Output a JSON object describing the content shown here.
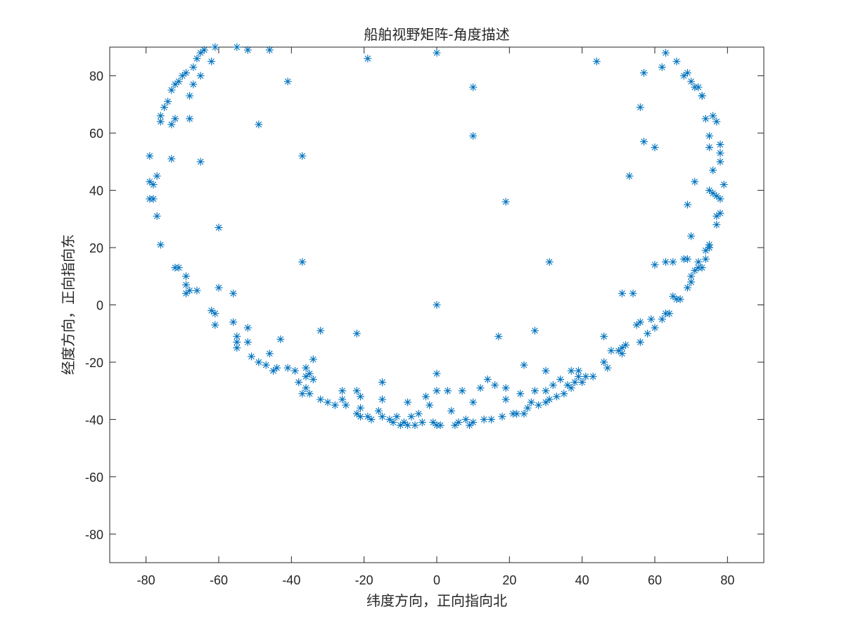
{
  "chart_data": {
    "type": "scatter",
    "title": "船舶视野矩阵-角度描述",
    "xlabel": "纬度方向，正向指向北",
    "ylabel": "经度方向，正向指向东",
    "xlim": [
      -90,
      90
    ],
    "ylim": [
      -90,
      90
    ],
    "xticks": [
      -80,
      -60,
      -40,
      -20,
      0,
      20,
      40,
      60,
      80
    ],
    "yticks": [
      -80,
      -60,
      -40,
      -20,
      0,
      20,
      40,
      60,
      80
    ],
    "grid": false,
    "marker": "asterisk",
    "color": "#0072bd",
    "points": [
      [
        -64,
        89
      ],
      [
        -61,
        90
      ],
      [
        -55,
        90
      ],
      [
        -52,
        89
      ],
      [
        -46,
        89
      ],
      [
        -19,
        86
      ],
      [
        0,
        88
      ],
      [
        44,
        85
      ],
      [
        63,
        88
      ],
      [
        62,
        83
      ],
      [
        66,
        85
      ],
      [
        10,
        76
      ],
      [
        -41,
        78
      ],
      [
        57,
        81
      ],
      [
        -65,
        88
      ],
      [
        -66,
        86
      ],
      [
        -62,
        85
      ],
      [
        -67,
        83
      ],
      [
        -69,
        81
      ],
      [
        -70,
        80
      ],
      [
        -71,
        78
      ],
      [
        -72,
        77
      ],
      [
        -73,
        75
      ],
      [
        -67,
        77
      ],
      [
        -65,
        80
      ],
      [
        -68,
        73
      ],
      [
        -74,
        71
      ],
      [
        -75,
        69
      ],
      [
        -76,
        66
      ],
      [
        -76,
        64
      ],
      [
        -73,
        63
      ],
      [
        -72,
        65
      ],
      [
        -68,
        65
      ],
      [
        -49,
        63
      ],
      [
        -79,
        52
      ],
      [
        -73,
        51
      ],
      [
        -37,
        52
      ],
      [
        -65,
        50
      ],
      [
        -77,
        45
      ],
      [
        -79,
        43
      ],
      [
        -78,
        42
      ],
      [
        -78,
        37
      ],
      [
        -79,
        37
      ],
      [
        -77,
        31
      ],
      [
        -60,
        27
      ],
      [
        -76,
        21
      ],
      [
        -37,
        15
      ],
      [
        -72,
        13
      ],
      [
        -71,
        13
      ],
      [
        -69,
        10
      ],
      [
        -69,
        7
      ],
      [
        -68,
        5
      ],
      [
        -69,
        4
      ],
      [
        -66,
        5
      ],
      [
        -60,
        6
      ],
      [
        -56,
        4
      ],
      [
        -62,
        -2
      ],
      [
        -61,
        -3
      ],
      [
        -61,
        -7
      ],
      [
        -56,
        -6
      ],
      [
        -52,
        -8
      ],
      [
        -55,
        -11
      ],
      [
        -55,
        -13
      ],
      [
        -55,
        -15
      ],
      [
        -52,
        -13
      ],
      [
        -43,
        -12
      ],
      [
        -51,
        -18
      ],
      [
        -49,
        -20
      ],
      [
        -47,
        -21
      ],
      [
        -45,
        -23
      ],
      [
        -46,
        -17
      ],
      [
        -44,
        -22
      ],
      [
        -39,
        -23
      ],
      [
        -41,
        -22
      ],
      [
        -38,
        -27
      ],
      [
        -34,
        -19
      ],
      [
        -35,
        -24
      ],
      [
        -34,
        -26
      ],
      [
        -36,
        -22
      ],
      [
        -36,
        -25
      ],
      [
        -36,
        -29
      ],
      [
        -37,
        -31
      ],
      [
        -35,
        -31
      ],
      [
        -32,
        -9
      ],
      [
        -32,
        -33
      ],
      [
        -30,
        -34
      ],
      [
        -28,
        -35
      ],
      [
        -26,
        -30
      ],
      [
        -26,
        -33
      ],
      [
        -25,
        -35
      ],
      [
        -22,
        -10
      ],
      [
        -22,
        -30
      ],
      [
        -21,
        -32
      ],
      [
        -21,
        -36
      ],
      [
        -22,
        -38
      ],
      [
        -21,
        -39
      ],
      [
        -19,
        -39
      ],
      [
        -18,
        -40
      ],
      [
        -16,
        -37
      ],
      [
        -15,
        -33
      ],
      [
        -15,
        -27
      ],
      [
        -15,
        -39
      ],
      [
        -13,
        -40
      ],
      [
        -12,
        -41
      ],
      [
        -11,
        -39
      ],
      [
        -10,
        -42
      ],
      [
        -9,
        -41
      ],
      [
        -8,
        -34
      ],
      [
        -8,
        -42
      ],
      [
        -7,
        -39
      ],
      [
        -6,
        -42
      ],
      [
        -5,
        -38
      ],
      [
        -4,
        -41
      ],
      [
        -3,
        -32
      ],
      [
        -2,
        -35
      ],
      [
        -1,
        -41
      ],
      [
        0,
        -42
      ],
      [
        1,
        -42
      ],
      [
        0,
        -30
      ],
      [
        0,
        -24
      ],
      [
        0,
        0
      ],
      [
        3,
        -30
      ],
      [
        4,
        -37
      ],
      [
        5,
        -42
      ],
      [
        6,
        -41
      ],
      [
        7,
        -30
      ],
      [
        8,
        -40
      ],
      [
        9,
        -42
      ],
      [
        10,
        -41
      ],
      [
        10,
        -34
      ],
      [
        10,
        59
      ],
      [
        12,
        -29
      ],
      [
        13,
        -40
      ],
      [
        14,
        -26
      ],
      [
        15,
        -40
      ],
      [
        16,
        -28
      ],
      [
        17,
        -11
      ],
      [
        18,
        -39
      ],
      [
        19,
        -29
      ],
      [
        19,
        -33
      ],
      [
        19,
        36
      ],
      [
        21,
        -38
      ],
      [
        22,
        -38
      ],
      [
        23,
        -31
      ],
      [
        24,
        -38
      ],
      [
        24,
        -21
      ],
      [
        25,
        -36
      ],
      [
        26,
        -34
      ],
      [
        27,
        -9
      ],
      [
        27,
        -30
      ],
      [
        28,
        -35
      ],
      [
        30,
        -34
      ],
      [
        30,
        -30
      ],
      [
        30,
        -23
      ],
      [
        31,
        15
      ],
      [
        31,
        -33
      ],
      [
        32,
        -28
      ],
      [
        33,
        -32
      ],
      [
        34,
        -26
      ],
      [
        35,
        -31
      ],
      [
        36,
        -28
      ],
      [
        37,
        -23
      ],
      [
        37,
        -29
      ],
      [
        38,
        -27
      ],
      [
        39,
        -23
      ],
      [
        39,
        -25
      ],
      [
        40,
        -27
      ],
      [
        41,
        -25
      ],
      [
        43,
        -25
      ],
      [
        46,
        -20
      ],
      [
        46,
        -11
      ],
      [
        47,
        -22
      ],
      [
        48,
        -16
      ],
      [
        50,
        -16
      ],
      [
        51,
        -15
      ],
      [
        51,
        -17
      ],
      [
        51,
        4
      ],
      [
        52,
        -14
      ],
      [
        53,
        45
      ],
      [
        54,
        4
      ],
      [
        55,
        -7
      ],
      [
        56,
        -6
      ],
      [
        56,
        -13
      ],
      [
        56,
        69
      ],
      [
        57,
        57
      ],
      [
        58,
        -10
      ],
      [
        59,
        -5
      ],
      [
        60,
        -8
      ],
      [
        60,
        14
      ],
      [
        60,
        55
      ],
      [
        62,
        -5
      ],
      [
        63,
        -3
      ],
      [
        63,
        15
      ],
      [
        64,
        -3
      ],
      [
        65,
        15
      ],
      [
        65,
        3
      ],
      [
        66,
        2
      ],
      [
        67,
        2
      ],
      [
        68,
        16
      ],
      [
        69,
        16
      ],
      [
        69,
        6
      ],
      [
        69,
        35
      ],
      [
        70,
        8
      ],
      [
        70,
        10
      ],
      [
        70,
        24
      ],
      [
        71,
        12
      ],
      [
        71,
        43
      ],
      [
        72,
        13
      ],
      [
        72,
        15
      ],
      [
        73,
        13
      ],
      [
        73,
        73
      ],
      [
        74,
        16
      ],
      [
        74,
        19
      ],
      [
        74,
        65
      ],
      [
        75,
        20
      ],
      [
        75,
        21
      ],
      [
        75,
        40
      ],
      [
        75,
        55
      ],
      [
        75,
        59
      ],
      [
        76,
        39
      ],
      [
        76,
        47
      ],
      [
        76,
        66
      ],
      [
        77,
        31
      ],
      [
        77,
        28
      ],
      [
        77,
        64
      ],
      [
        77,
        38
      ],
      [
        78,
        32
      ],
      [
        78,
        56
      ],
      [
        78,
        50
      ],
      [
        78,
        53
      ],
      [
        79,
        42
      ],
      [
        78,
        37
      ],
      [
        68,
        80
      ],
      [
        70,
        78
      ],
      [
        71,
        76
      ],
      [
        69,
        81
      ],
      [
        72,
        76
      ],
      [
        73,
        73
      ]
    ]
  }
}
